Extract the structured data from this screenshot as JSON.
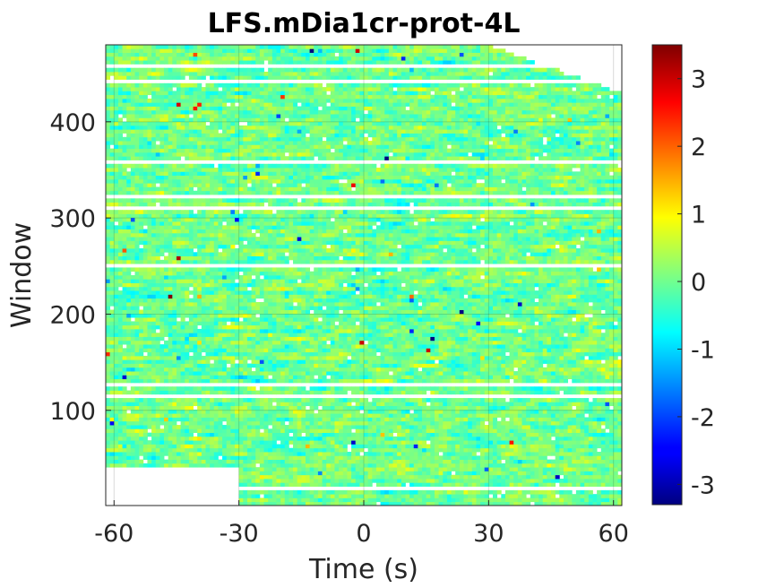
{
  "chart_data": {
    "type": "heatmap",
    "title": "LFS.mDia1cr-prot-4L",
    "xlabel": "Time (s)",
    "ylabel": "Window",
    "xlim": [
      -62,
      62
    ],
    "ylim": [
      1,
      480
    ],
    "x_ticks": [
      -60,
      -30,
      0,
      30,
      60
    ],
    "x_tick_labels": [
      "-60",
      "-30",
      "0",
      "30",
      "60"
    ],
    "y_ticks": [
      100,
      200,
      300,
      400
    ],
    "y_tick_labels": [
      "100",
      "200",
      "300",
      "400"
    ],
    "colorbar": {
      "colormap": "jet",
      "range": [
        -3.3,
        3.5
      ],
      "ticks": [
        3,
        2,
        1,
        0,
        -1,
        -2,
        -3
      ],
      "tick_labels": [
        "3",
        "2",
        "1",
        "0",
        "-1",
        "-2",
        "-3"
      ]
    },
    "missing_data_color": "#ffffff",
    "missing_regions": [
      {
        "description": "windows 1 to ~40, times -62 to -30",
        "x": [
          -62,
          -30
        ],
        "y": [
          1,
          40
        ]
      },
      {
        "description": "upper right wedge, windows above ~430 at late times",
        "x": [
          30,
          62
        ],
        "y": [
          430,
          480
        ]
      }
    ],
    "grid": true,
    "value_distribution": "mostly between -1 and 1, sparse extremes near ±3"
  }
}
